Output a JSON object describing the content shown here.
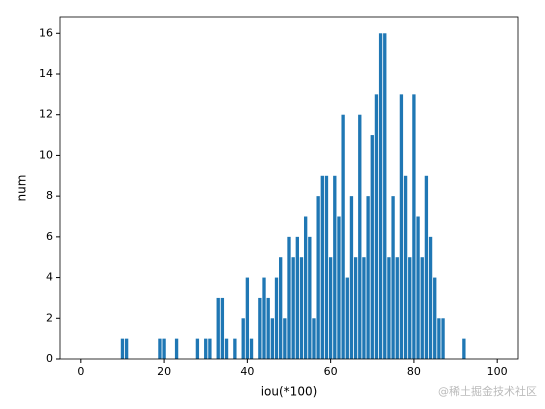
{
  "chart_data": {
    "type": "bar",
    "xlabel": "iou(*100)",
    "ylabel": "num",
    "x": [
      10,
      11,
      19,
      20,
      23,
      28,
      30,
      31,
      33,
      34,
      35,
      37,
      39,
      40,
      41,
      43,
      44,
      45,
      46,
      47,
      48,
      49,
      50,
      51,
      52,
      53,
      54,
      55,
      56,
      57,
      58,
      59,
      60,
      61,
      62,
      63,
      64,
      65,
      66,
      67,
      68,
      69,
      70,
      71,
      72,
      73,
      74,
      75,
      76,
      77,
      78,
      79,
      80,
      81,
      82,
      83,
      84,
      85,
      86,
      87,
      92
    ],
    "values": [
      1,
      1,
      1,
      1,
      1,
      1,
      1,
      1,
      3,
      3,
      1,
      1,
      2,
      4,
      1,
      3,
      4,
      3,
      2,
      4,
      5,
      2,
      6,
      5,
      6,
      5,
      7,
      6,
      2,
      8,
      9,
      9,
      5,
      9,
      7,
      12,
      4,
      8,
      5,
      12,
      5,
      8,
      11,
      13,
      16,
      16,
      5,
      8,
      5,
      13,
      9,
      5,
      13,
      7,
      5,
      9,
      6,
      4,
      2,
      2,
      1
    ],
    "color": "#1f77b4",
    "xlim": [
      -5,
      105
    ],
    "xticks": [
      0,
      20,
      40,
      60,
      80,
      100
    ],
    "ylim": [
      0,
      16.8
    ],
    "yticks": [
      0,
      2,
      4,
      6,
      8,
      10,
      12,
      14,
      16
    ],
    "watermark": "@稀土掘金技术社区"
  }
}
